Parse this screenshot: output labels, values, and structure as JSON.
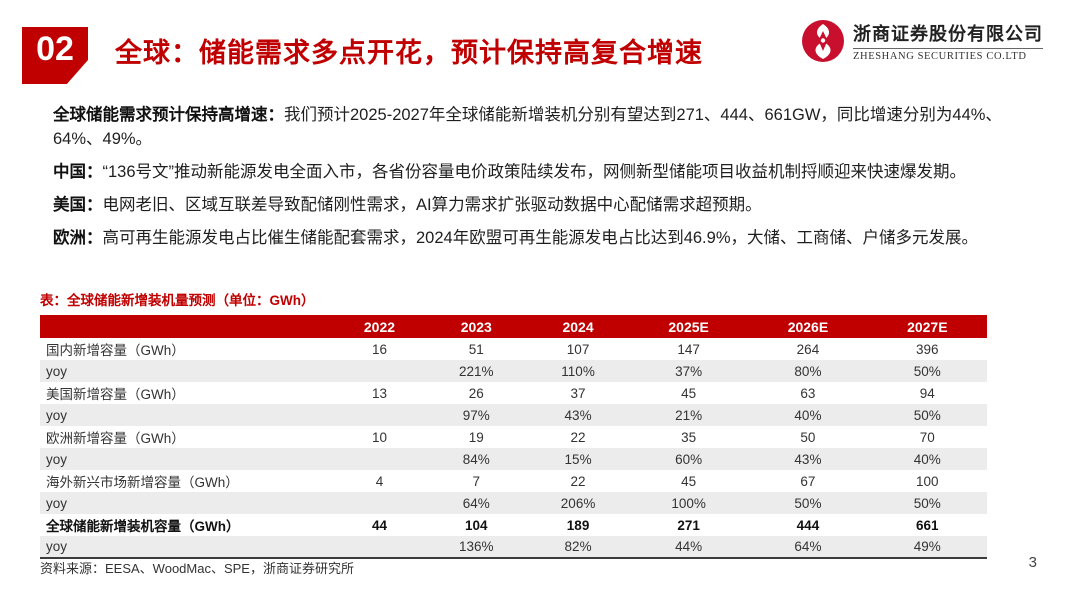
{
  "colors": {
    "accent": "#C00000",
    "stripe": "#ECECEC",
    "logo_red": "#C8102E"
  },
  "header": {
    "section_number": "02",
    "title": "全球：储能需求多点开花，预计保持高复合增速"
  },
  "logo": {
    "cn_name": "浙商证券股份有限公司",
    "en_name": "ZHESHANG SECURITIES CO.LTD"
  },
  "bullets": [
    {
      "type": "square",
      "lead": "全球储能需求预计保持高增速：",
      "text": "我们预计2025-2027年全球储能新增装机分别有望达到271、444、661GW，同比增速分别为44%、64%、49%。"
    },
    {
      "type": "arrow",
      "lead": "中国：",
      "text": "“136号文”推动新能源发电全面入市，各省份容量电价政策陆续发布，网侧新型储能项目收益机制捋顺迎来快速爆发期。"
    },
    {
      "type": "arrow",
      "lead": "美国：",
      "text": "电网老旧、区域互联差导致配储刚性需求，AI算力需求扩张驱动数据中心配储需求超预期。"
    },
    {
      "type": "arrow",
      "lead": "欧洲：",
      "text": "高可再生能源发电占比催生储能配套需求，2024年欧盟可再生能源发电占比达到46.9%，大储、工商储、户储多元发展。"
    }
  ],
  "table": {
    "title": "表：全球储能新增装机量预测（单位：GWh）",
    "columns": [
      "",
      "2022",
      "2023",
      "2024",
      "2025E",
      "2026E",
      "2027E"
    ],
    "rows": [
      {
        "label": "国内新增容量（GWh）",
        "values": [
          "16",
          "51",
          "107",
          "147",
          "264",
          "396"
        ],
        "shaded": false,
        "bold": false
      },
      {
        "label": "yoy",
        "values": [
          "",
          "221%",
          "110%",
          "37%",
          "80%",
          "50%"
        ],
        "shaded": true,
        "bold": false
      },
      {
        "label": "美国新增容量（GWh）",
        "values": [
          "13",
          "26",
          "37",
          "45",
          "63",
          "94"
        ],
        "shaded": false,
        "bold": false
      },
      {
        "label": "yoy",
        "values": [
          "",
          "97%",
          "43%",
          "21%",
          "40%",
          "50%"
        ],
        "shaded": true,
        "bold": false
      },
      {
        "label": "欧洲新增容量（GWh）",
        "values": [
          "10",
          "19",
          "22",
          "35",
          "50",
          "70"
        ],
        "shaded": false,
        "bold": false
      },
      {
        "label": "yoy",
        "values": [
          "",
          "84%",
          "15%",
          "60%",
          "43%",
          "40%"
        ],
        "shaded": true,
        "bold": false
      },
      {
        "label": "海外新兴市场新增容量（GWh）",
        "values": [
          "4",
          "7",
          "22",
          "45",
          "67",
          "100"
        ],
        "shaded": false,
        "bold": false
      },
      {
        "label": "yoy",
        "values": [
          "",
          "64%",
          "206%",
          "100%",
          "50%",
          "50%"
        ],
        "shaded": true,
        "bold": false
      },
      {
        "label": "全球储能新增装机容量（GWh）",
        "values": [
          "44",
          "104",
          "189",
          "271",
          "444",
          "661"
        ],
        "shaded": false,
        "bold": true
      },
      {
        "label": "yoy",
        "values": [
          "",
          "136%",
          "82%",
          "44%",
          "64%",
          "49%"
        ],
        "shaded": true,
        "bold": false
      }
    ]
  },
  "footer": {
    "source": "资料来源：EESA、WoodMac、SPE，浙商证券研究所",
    "page": "3"
  }
}
